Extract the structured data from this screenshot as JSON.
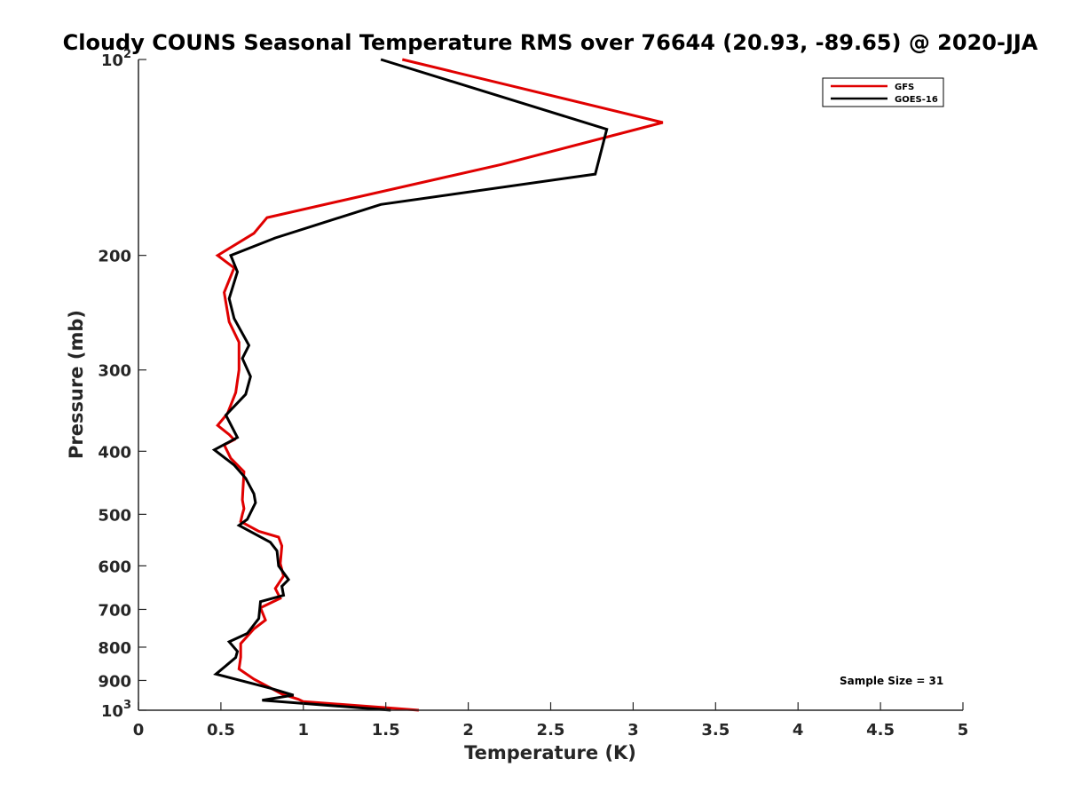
{
  "chart_data": {
    "type": "line",
    "title": "Cloudy COUNS Seasonal Temperature RMS over 76644 (20.93, -89.65) @ 2020-JJA",
    "xlabel": "Temperature (K)",
    "ylabel": "Pressure (mb)",
    "xlim": [
      0,
      5
    ],
    "ylim": [
      100,
      1000
    ],
    "y_scale": "log",
    "y_reversed": true,
    "x_ticks": [
      "0",
      "0.5",
      "1",
      "1.5",
      "2",
      "2.5",
      "3",
      "3.5",
      "4",
      "4.5",
      "5"
    ],
    "y_ticks": [
      {
        "value": 100,
        "base": "10",
        "exp": "2"
      },
      {
        "value": 200,
        "label": "200"
      },
      {
        "value": 300,
        "label": "300"
      },
      {
        "value": 400,
        "label": "400"
      },
      {
        "value": 500,
        "label": "500"
      },
      {
        "value": 600,
        "label": "600"
      },
      {
        "value": 700,
        "label": "700"
      },
      {
        "value": 800,
        "label": "800"
      },
      {
        "value": 900,
        "label": "900"
      },
      {
        "value": 1000,
        "base": "10",
        "exp": "3"
      }
    ],
    "grid": false,
    "legend_position": "top-right",
    "annotation": "Sample Size = 31",
    "series": [
      {
        "name": "GFS",
        "color": "#e00000",
        "points": [
          [
            1.6,
            100
          ],
          [
            3.18,
            125
          ],
          [
            2.2,
            145
          ],
          [
            0.78,
            175
          ],
          [
            0.7,
            185
          ],
          [
            0.48,
            200
          ],
          [
            0.58,
            209
          ],
          [
            0.52,
            228
          ],
          [
            0.55,
            253
          ],
          [
            0.61,
            272
          ],
          [
            0.61,
            300
          ],
          [
            0.59,
            325
          ],
          [
            0.54,
            350
          ],
          [
            0.48,
            365
          ],
          [
            0.55,
            377
          ],
          [
            0.58,
            384
          ],
          [
            0.52,
            391
          ],
          [
            0.56,
            410
          ],
          [
            0.64,
            430
          ],
          [
            0.63,
            475
          ],
          [
            0.64,
            490
          ],
          [
            0.63,
            500
          ],
          [
            0.62,
            513
          ],
          [
            0.73,
            531
          ],
          [
            0.85,
            542
          ],
          [
            0.87,
            559
          ],
          [
            0.86,
            595
          ],
          [
            0.88,
            622
          ],
          [
            0.83,
            650
          ],
          [
            0.86,
            673
          ],
          [
            0.74,
            696
          ],
          [
            0.77,
            727
          ],
          [
            0.7,
            750
          ],
          [
            0.62,
            790
          ],
          [
            0.62,
            829
          ],
          [
            0.61,
            864
          ],
          [
            0.7,
            896
          ],
          [
            0.87,
            944
          ],
          [
            0.97,
            962
          ],
          [
            1.0,
            970
          ],
          [
            1.5,
            991
          ],
          [
            1.7,
            1000
          ]
        ]
      },
      {
        "name": "GOES-16",
        "color": "#000000",
        "points": [
          [
            1.47,
            100
          ],
          [
            2.84,
            128
          ],
          [
            2.77,
            150
          ],
          [
            1.47,
            167
          ],
          [
            0.83,
            188
          ],
          [
            0.56,
            200
          ],
          [
            0.6,
            212
          ],
          [
            0.55,
            233
          ],
          [
            0.58,
            250
          ],
          [
            0.67,
            275
          ],
          [
            0.63,
            288
          ],
          [
            0.68,
            307
          ],
          [
            0.65,
            327
          ],
          [
            0.53,
            352
          ],
          [
            0.6,
            381
          ],
          [
            0.46,
            398
          ],
          [
            0.58,
            420
          ],
          [
            0.65,
            440
          ],
          [
            0.7,
            465
          ],
          [
            0.71,
            480
          ],
          [
            0.66,
            509
          ],
          [
            0.61,
            520
          ],
          [
            0.8,
            552
          ],
          [
            0.84,
            569
          ],
          [
            0.85,
            600
          ],
          [
            0.91,
            630
          ],
          [
            0.87,
            645
          ],
          [
            0.88,
            666
          ],
          [
            0.74,
            681
          ],
          [
            0.73,
            723
          ],
          [
            0.66,
            762
          ],
          [
            0.55,
            785
          ],
          [
            0.6,
            812
          ],
          [
            0.59,
            830
          ],
          [
            0.47,
            880
          ],
          [
            0.8,
            925
          ],
          [
            0.94,
            948
          ],
          [
            0.75,
            965
          ],
          [
            1.53,
            1000
          ]
        ]
      }
    ]
  }
}
